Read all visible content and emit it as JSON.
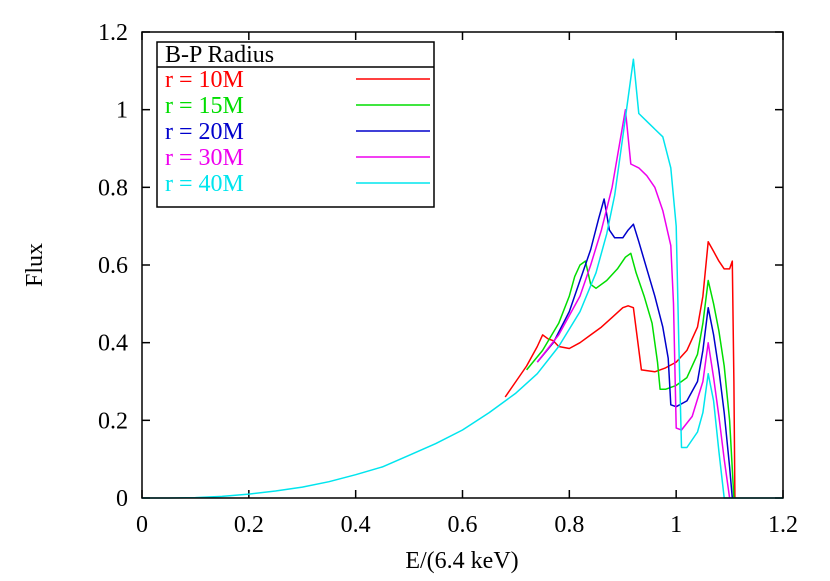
{
  "chart_data": {
    "type": "line",
    "xlabel": "E/(6.4 keV)",
    "ylabel": "Flux",
    "xlim": [
      0,
      1.2
    ],
    "ylim": [
      0,
      1.2
    ],
    "xticks": [
      "0",
      "0.2",
      "0.4",
      "0.6",
      "0.8",
      "1",
      "1.2"
    ],
    "yticks": [
      "0",
      "0.2",
      "0.4",
      "0.6",
      "0.8",
      "1",
      "1.2"
    ],
    "grid": false,
    "legend_title": "B-P Radius",
    "legend_position": "top-left",
    "series": [
      {
        "name": "r = 10M",
        "color": "#ff0000",
        "points": [
          [
            0.68,
            0.26
          ],
          [
            0.7,
            0.3
          ],
          [
            0.72,
            0.34
          ],
          [
            0.74,
            0.39
          ],
          [
            0.75,
            0.42
          ],
          [
            0.76,
            0.41
          ],
          [
            0.77,
            0.405
          ],
          [
            0.78,
            0.39
          ],
          [
            0.8,
            0.385
          ],
          [
            0.82,
            0.4
          ],
          [
            0.84,
            0.42
          ],
          [
            0.86,
            0.44
          ],
          [
            0.88,
            0.465
          ],
          [
            0.9,
            0.49
          ],
          [
            0.91,
            0.495
          ],
          [
            0.92,
            0.49
          ],
          [
            0.935,
            0.33
          ],
          [
            0.96,
            0.325
          ],
          [
            0.98,
            0.335
          ],
          [
            1.0,
            0.35
          ],
          [
            1.02,
            0.38
          ],
          [
            1.04,
            0.44
          ],
          [
            1.05,
            0.52
          ],
          [
            1.06,
            0.66
          ],
          [
            1.07,
            0.635
          ],
          [
            1.08,
            0.61
          ],
          [
            1.09,
            0.59
          ],
          [
            1.1,
            0.59
          ],
          [
            1.105,
            0.61
          ],
          [
            1.108,
            0.3
          ],
          [
            1.11,
            0.0
          ]
        ]
      },
      {
        "name": "r = 15M",
        "color": "#00dd00",
        "points": [
          [
            0.72,
            0.33
          ],
          [
            0.75,
            0.38
          ],
          [
            0.78,
            0.45
          ],
          [
            0.8,
            0.52
          ],
          [
            0.81,
            0.57
          ],
          [
            0.82,
            0.6
          ],
          [
            0.83,
            0.61
          ],
          [
            0.84,
            0.55
          ],
          [
            0.85,
            0.54
          ],
          [
            0.87,
            0.56
          ],
          [
            0.89,
            0.59
          ],
          [
            0.905,
            0.62
          ],
          [
            0.915,
            0.63
          ],
          [
            0.925,
            0.58
          ],
          [
            0.94,
            0.52
          ],
          [
            0.955,
            0.45
          ],
          [
            0.965,
            0.35
          ],
          [
            0.97,
            0.28
          ],
          [
            0.98,
            0.28
          ],
          [
            1.0,
            0.29
          ],
          [
            1.02,
            0.31
          ],
          [
            1.04,
            0.37
          ],
          [
            1.05,
            0.45
          ],
          [
            1.06,
            0.56
          ],
          [
            1.07,
            0.5
          ],
          [
            1.08,
            0.43
          ],
          [
            1.09,
            0.34
          ],
          [
            1.1,
            0.2
          ],
          [
            1.108,
            0.0
          ]
        ]
      },
      {
        "name": "r = 20M",
        "color": "#0000cc",
        "points": [
          [
            0.74,
            0.35
          ],
          [
            0.77,
            0.4
          ],
          [
            0.8,
            0.48
          ],
          [
            0.82,
            0.56
          ],
          [
            0.84,
            0.64
          ],
          [
            0.855,
            0.72
          ],
          [
            0.865,
            0.77
          ],
          [
            0.875,
            0.69
          ],
          [
            0.885,
            0.67
          ],
          [
            0.9,
            0.67
          ],
          [
            0.91,
            0.69
          ],
          [
            0.92,
            0.705
          ],
          [
            0.93,
            0.66
          ],
          [
            0.945,
            0.59
          ],
          [
            0.96,
            0.52
          ],
          [
            0.975,
            0.44
          ],
          [
            0.985,
            0.36
          ],
          [
            0.99,
            0.24
          ],
          [
            1.0,
            0.235
          ],
          [
            1.02,
            0.25
          ],
          [
            1.04,
            0.3
          ],
          [
            1.05,
            0.38
          ],
          [
            1.06,
            0.49
          ],
          [
            1.07,
            0.42
          ],
          [
            1.08,
            0.33
          ],
          [
            1.09,
            0.22
          ],
          [
            1.1,
            0.08
          ],
          [
            1.105,
            0.0
          ]
        ]
      },
      {
        "name": "r = 30M",
        "color": "#ee00ee",
        "points": [
          [
            0.74,
            0.35
          ],
          [
            0.78,
            0.42
          ],
          [
            0.82,
            0.52
          ],
          [
            0.84,
            0.6
          ],
          [
            0.86,
            0.69
          ],
          [
            0.88,
            0.8
          ],
          [
            0.895,
            0.92
          ],
          [
            0.905,
            1.0
          ],
          [
            0.915,
            0.86
          ],
          [
            0.93,
            0.85
          ],
          [
            0.945,
            0.83
          ],
          [
            0.96,
            0.8
          ],
          [
            0.975,
            0.74
          ],
          [
            0.99,
            0.65
          ],
          [
            0.995,
            0.5
          ],
          [
            1.0,
            0.18
          ],
          [
            1.01,
            0.175
          ],
          [
            1.03,
            0.21
          ],
          [
            1.05,
            0.3
          ],
          [
            1.06,
            0.4
          ],
          [
            1.07,
            0.31
          ],
          [
            1.08,
            0.21
          ],
          [
            1.09,
            0.1
          ],
          [
            1.1,
            0.0
          ]
        ]
      },
      {
        "name": "r = 40M",
        "color": "#00e5ee",
        "points": [
          [
            0.0,
            0.0
          ],
          [
            0.05,
            0.0
          ],
          [
            0.1,
            0.001
          ],
          [
            0.15,
            0.004
          ],
          [
            0.2,
            0.01
          ],
          [
            0.25,
            0.018
          ],
          [
            0.3,
            0.028
          ],
          [
            0.35,
            0.042
          ],
          [
            0.4,
            0.06
          ],
          [
            0.45,
            0.08
          ],
          [
            0.5,
            0.11
          ],
          [
            0.55,
            0.14
          ],
          [
            0.6,
            0.175
          ],
          [
            0.65,
            0.22
          ],
          [
            0.7,
            0.27
          ],
          [
            0.74,
            0.32
          ],
          [
            0.78,
            0.39
          ],
          [
            0.82,
            0.48
          ],
          [
            0.85,
            0.58
          ],
          [
            0.87,
            0.68
          ],
          [
            0.885,
            0.78
          ],
          [
            0.9,
            0.93
          ],
          [
            0.91,
            1.03
          ],
          [
            0.92,
            1.13
          ],
          [
            0.93,
            0.99
          ],
          [
            0.945,
            0.97
          ],
          [
            0.96,
            0.95
          ],
          [
            0.975,
            0.93
          ],
          [
            0.99,
            0.85
          ],
          [
            1.0,
            0.7
          ],
          [
            1.005,
            0.4
          ],
          [
            1.01,
            0.13
          ],
          [
            1.02,
            0.13
          ],
          [
            1.04,
            0.17
          ],
          [
            1.05,
            0.22
          ],
          [
            1.06,
            0.32
          ],
          [
            1.07,
            0.25
          ],
          [
            1.08,
            0.12
          ],
          [
            1.09,
            0.0
          ],
          [
            1.2,
            0.0
          ]
        ]
      }
    ]
  }
}
